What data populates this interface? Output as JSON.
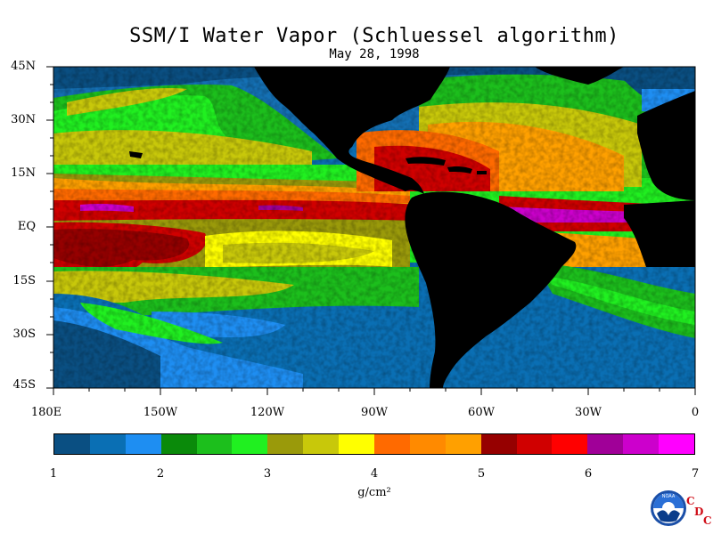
{
  "title": "SSM/I Water Vapor (Schluessel algorithm)",
  "date": "May 28, 1998",
  "lat_labels": [
    "45N",
    "30N",
    "15N",
    "EQ",
    "15S",
    "30S",
    "45S"
  ],
  "lon_labels": [
    "180E",
    "150W",
    "120W",
    "90W",
    "60W",
    "30W",
    "0"
  ],
  "colorbar": {
    "tick_labels": [
      "1",
      "2",
      "3",
      "4",
      "5",
      "6",
      "7"
    ],
    "units": "g/cm²",
    "colors": [
      "#0a4f82",
      "#0a6fb4",
      "#1e8ef2",
      "#0a8a0a",
      "#1cbf1c",
      "#20f020",
      "#9a9a0a",
      "#c8c80a",
      "#ffff00",
      "#ff6a00",
      "#ff8a00",
      "#ffa000",
      "#960000",
      "#d00000",
      "#ff0000",
      "#a00098",
      "#cc00cc",
      "#ff00ff"
    ]
  },
  "logo": {
    "label": "NOAA",
    "letters": [
      "C",
      "D",
      "C"
    ]
  }
}
